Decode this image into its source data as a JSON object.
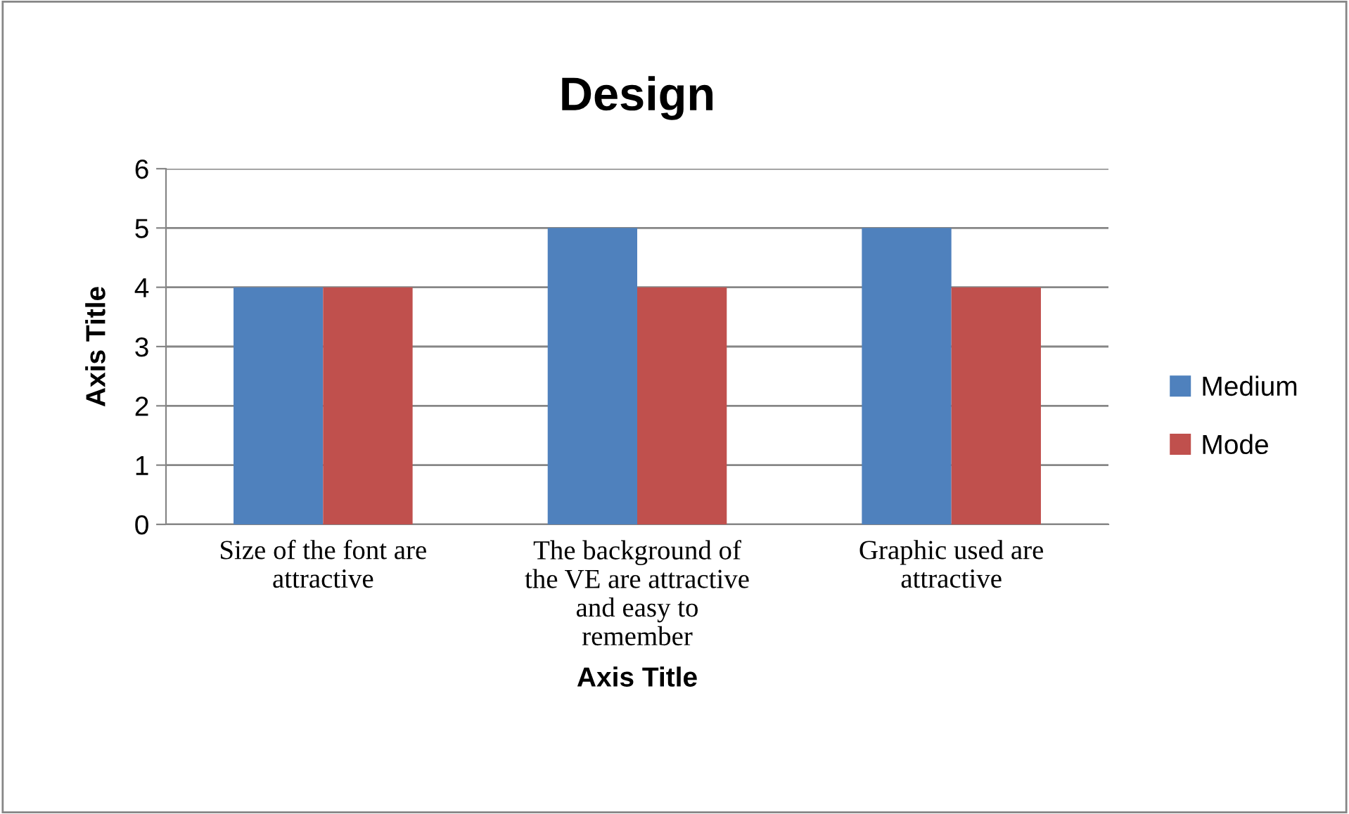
{
  "chart_data": {
    "type": "bar",
    "title": "Design",
    "xlabel": "Axis Title",
    "ylabel": "Axis Title",
    "categories": [
      "Size of the font are\nattractive",
      "The background of\nthe VE are attractive\nand easy to\nremember",
      "Graphic used are\nattractive"
    ],
    "series": [
      {
        "name": "Medium",
        "color": "#4f81bd",
        "values": [
          4,
          5,
          5
        ]
      },
      {
        "name": "Mode",
        "color": "#c0504d",
        "values": [
          4,
          4,
          4
        ]
      }
    ],
    "ylim": [
      0,
      6
    ],
    "yticks": [
      0,
      1,
      2,
      3,
      4,
      5,
      6
    ],
    "grid": "y",
    "legend": "right"
  }
}
